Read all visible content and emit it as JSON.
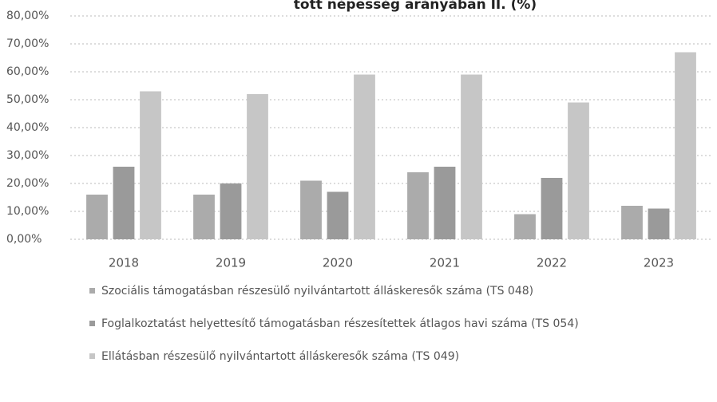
{
  "chart_data": {
    "type": "bar",
    "title": "tott népesség arányában II. (%)",
    "categories": [
      "2018",
      "2019",
      "2020",
      "2021",
      "2022",
      "2023"
    ],
    "series": [
      {
        "name": "Szociális támogatásban részesülő nyilvántartott álláskeresők száma (TS 048)",
        "color": "#ababab",
        "values": [
          16,
          16,
          21,
          24,
          9,
          12
        ]
      },
      {
        "name": "Foglalkoztatást helyettesítő támogatásban részesítettek átlagos havi száma (TS 054)",
        "color": "#9a9a9a",
        "values": [
          26,
          20,
          17,
          26,
          22,
          11
        ]
      },
      {
        "name": "Ellátásban részesülő nyilvántartott álláskeresők száma (TS 049)",
        "color": "#c6c6c6",
        "values": [
          53,
          52,
          59,
          59,
          49,
          67
        ]
      }
    ],
    "ylim": [
      0,
      80
    ],
    "yticks": [
      {
        "value": 0,
        "label": "0,00%"
      },
      {
        "value": 10,
        "label": "10,00%"
      },
      {
        "value": 20,
        "label": "20,00%"
      },
      {
        "value": 30,
        "label": "30,00%"
      },
      {
        "value": 40,
        "label": "40,00%"
      },
      {
        "value": 50,
        "label": "50,00%"
      },
      {
        "value": 60,
        "label": "60,00%"
      },
      {
        "value": 70,
        "label": "70,00%"
      },
      {
        "value": 80,
        "label": "80,00%"
      }
    ],
    "grid": true,
    "legend": "bottom"
  }
}
